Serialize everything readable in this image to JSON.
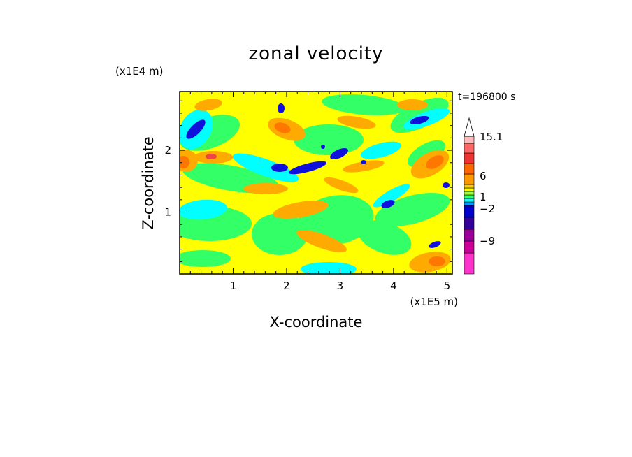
{
  "chart_data": {
    "type": "heatmap",
    "title": "zonal velocity",
    "xlabel": "X-coordinate",
    "ylabel": "Z-coordinate",
    "x_unit": "(x1E5 m)",
    "y_unit": "(x1E4 m)",
    "time_label": "t=196800 s",
    "x_range": [
      0,
      5.1
    ],
    "y_range": [
      0,
      2.95
    ],
    "x_ticks": [
      {
        "value": 1,
        "label": "1"
      },
      {
        "value": 2,
        "label": "2"
      },
      {
        "value": 3,
        "label": "3"
      },
      {
        "value": 4,
        "label": "4"
      },
      {
        "value": 5,
        "label": "5"
      }
    ],
    "y_ticks": [
      {
        "value": 1,
        "label": "1"
      },
      {
        "value": 2,
        "label": "2"
      }
    ],
    "colorbar": {
      "levels": [
        {
          "color": "#ff33cc"
        },
        {
          "color": "#cc0099"
        },
        {
          "color": "#990099"
        },
        {
          "color": "#330099"
        },
        {
          "color": "#0000cc"
        },
        {
          "color": "#0099ff"
        },
        {
          "color": "#00ffff"
        },
        {
          "color": "#33ff66"
        },
        {
          "color": "#99ff33"
        },
        {
          "color": "#ffff00"
        },
        {
          "color": "#ffcc00"
        },
        {
          "color": "#ff9900"
        },
        {
          "color": "#ff6600"
        },
        {
          "color": "#ee3333"
        },
        {
          "color": "#ff6666"
        },
        {
          "color": "#ffbbbb"
        }
      ],
      "labels": [
        "15.1",
        "6",
        "1",
        "−2",
        "−9"
      ],
      "overflow_arrow": true
    },
    "field_palette": {
      "magenta": "#dd00cc",
      "blue": "#1010dd",
      "cyan": "#00ffff",
      "green": "#33ff66",
      "yellow": "#ffff00",
      "orange": "#ffaa00",
      "dark_orange": "#ff7700",
      "red": "#ee4444"
    }
  }
}
